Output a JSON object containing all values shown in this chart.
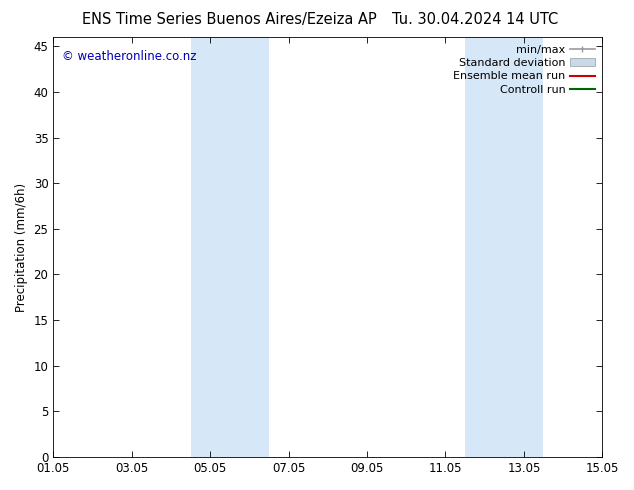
{
  "title_left": "ENS Time Series Buenos Aires/Ezeiza AP",
  "title_right": "Tu. 30.04.2024 14 UTC",
  "ylabel": "Precipitation (mm/6h)",
  "xlabel_ticks": [
    "01.05",
    "03.05",
    "05.05",
    "07.05",
    "09.05",
    "11.05",
    "13.05",
    "15.05"
  ],
  "xlim": [
    0,
    14
  ],
  "ylim": [
    0,
    46
  ],
  "yticks": [
    0,
    5,
    10,
    15,
    20,
    25,
    30,
    35,
    40,
    45
  ],
  "shaded_regions": [
    {
      "xmin": 3.5,
      "xmax": 5.5,
      "color": "#d6e8f8"
    },
    {
      "xmin": 10.5,
      "xmax": 12.5,
      "color": "#d6e8f8"
    }
  ],
  "legend_entries": [
    {
      "label": "min/max",
      "color": "#999999",
      "lw": 1.2,
      "type": "minmax"
    },
    {
      "label": "Standard deviation",
      "color": "#c8daea",
      "lw": 8,
      "type": "band"
    },
    {
      "label": "Ensemble mean run",
      "color": "#cc0000",
      "lw": 1.5,
      "type": "line"
    },
    {
      "label": "Controll run",
      "color": "#006600",
      "lw": 1.5,
      "type": "line"
    }
  ],
  "watermark": "© weatheronline.co.nz",
  "watermark_color": "#0000bb",
  "background_color": "#ffffff",
  "plot_bg_color": "#ffffff",
  "tick_label_fontsize": 8.5,
  "axis_label_fontsize": 8.5,
  "title_fontsize": 10.5,
  "legend_fontsize": 8.0
}
